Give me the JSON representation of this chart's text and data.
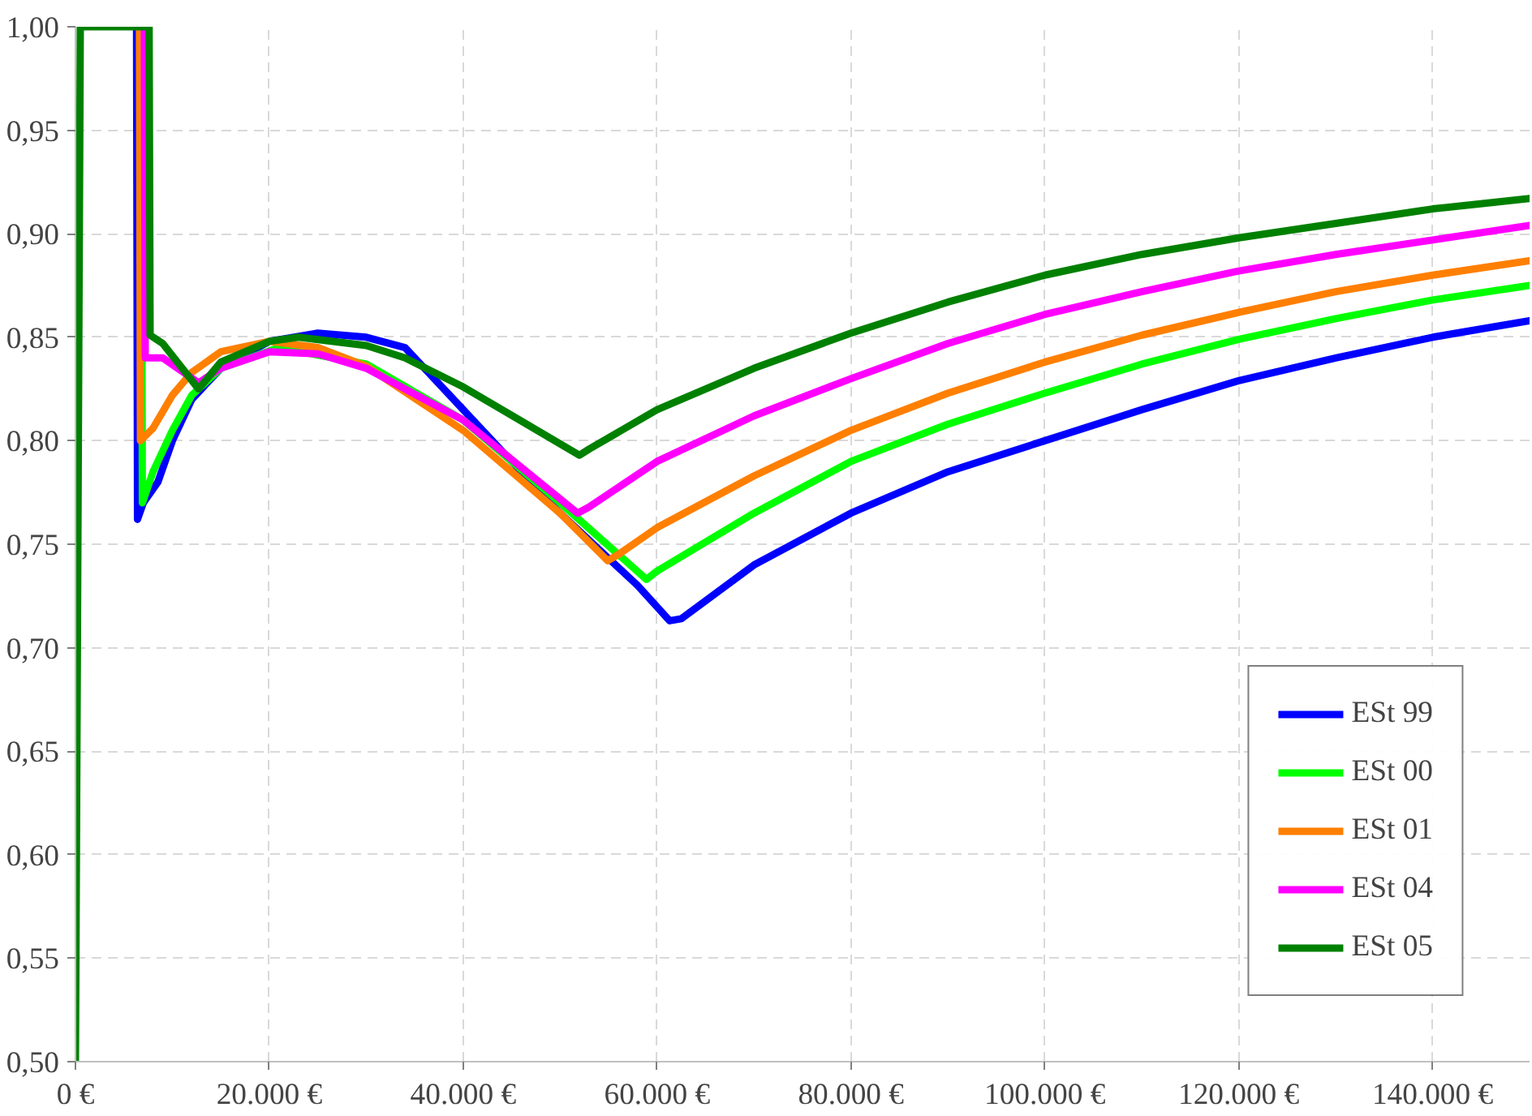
{
  "chart_data": {
    "type": "line",
    "xlim": [
      0,
      150000
    ],
    "ylim": [
      0.5,
      1.0
    ],
    "xticks": [
      {
        "value": 0,
        "label": "0 €"
      },
      {
        "value": 20000,
        "label": "20.000 €"
      },
      {
        "value": 40000,
        "label": "40.000 €"
      },
      {
        "value": 60000,
        "label": "60.000 €"
      },
      {
        "value": 80000,
        "label": "80.000 €"
      },
      {
        "value": 100000,
        "label": "100.000 €"
      },
      {
        "value": 120000,
        "label": "120.000 €"
      },
      {
        "value": 140000,
        "label": "140.000 €"
      }
    ],
    "yticks": [
      {
        "value": 0.5,
        "label": "0,50"
      },
      {
        "value": 0.55,
        "label": "0,55"
      },
      {
        "value": 0.6,
        "label": "0,60"
      },
      {
        "value": 0.65,
        "label": "0,65"
      },
      {
        "value": 0.7,
        "label": "0,70"
      },
      {
        "value": 0.75,
        "label": "0,75"
      },
      {
        "value": 0.8,
        "label": "0,80"
      },
      {
        "value": 0.85,
        "label": "0,85"
      },
      {
        "value": 0.9,
        "label": "0,90"
      },
      {
        "value": 0.95,
        "label": "0,95"
      },
      {
        "value": 1.0,
        "label": "1,00"
      }
    ],
    "grid": true,
    "legend": "bottom right",
    "marker": "none",
    "line_style": "solid",
    "series": [
      {
        "name": "ESt 99",
        "color": "#0000ff",
        "x": [
          6300,
          6400,
          7000,
          8500,
          10000,
          12000,
          15000,
          20000,
          25000,
          30000,
          34000,
          40000,
          50000,
          58000,
          61300,
          62500,
          70000,
          80000,
          90000,
          100000,
          110000,
          120000,
          130000,
          140000,
          150000
        ],
        "values": [
          1.0,
          0.762,
          0.77,
          0.78,
          0.8,
          0.82,
          0.835,
          0.848,
          0.852,
          0.85,
          0.845,
          0.815,
          0.765,
          0.73,
          0.713,
          0.714,
          0.74,
          0.765,
          0.785,
          0.8,
          0.815,
          0.829,
          0.84,
          0.85,
          0.858
        ]
      },
      {
        "name": "ESt 00",
        "color": "#00ff00",
        "x": [
          6800,
          6900,
          8000,
          10000,
          12000,
          15000,
          21000,
          30000,
          40000,
          50000,
          58900,
          60000,
          70000,
          80000,
          90000,
          100000,
          110000,
          120000,
          130000,
          140000,
          150000
        ],
        "values": [
          1.0,
          0.77,
          0.785,
          0.805,
          0.822,
          0.835,
          0.845,
          0.837,
          0.81,
          0.77,
          0.733,
          0.737,
          0.765,
          0.79,
          0.808,
          0.823,
          0.837,
          0.849,
          0.859,
          0.868,
          0.875
        ]
      },
      {
        "name": "ESt 01",
        "color": "#ff7f00",
        "x": [
          6600,
          6700,
          8000,
          10000,
          12000,
          15000,
          20000,
          25000,
          30000,
          40000,
          50000,
          54900,
          56000,
          60000,
          70000,
          80000,
          90000,
          100000,
          110000,
          120000,
          130000,
          140000,
          150000
        ],
        "values": [
          1.0,
          0.8,
          0.806,
          0.822,
          0.833,
          0.843,
          0.848,
          0.845,
          0.836,
          0.805,
          0.765,
          0.742,
          0.745,
          0.758,
          0.783,
          0.805,
          0.823,
          0.838,
          0.851,
          0.862,
          0.872,
          0.88,
          0.887
        ]
      },
      {
        "name": "ESt 04",
        "color": "#ff00ff",
        "x": [
          7100,
          7200,
          9000,
          12700,
          15000,
          20000,
          25000,
          30000,
          40000,
          51800,
          53000,
          60000,
          70000,
          80000,
          90000,
          100000,
          110000,
          120000,
          130000,
          140000,
          150000
        ],
        "values": [
          1.0,
          0.84,
          0.84,
          0.828,
          0.835,
          0.843,
          0.842,
          0.835,
          0.81,
          0.765,
          0.768,
          0.79,
          0.812,
          0.83,
          0.847,
          0.861,
          0.872,
          0.882,
          0.89,
          0.897,
          0.904
        ]
      },
      {
        "name": "ESt 05",
        "color": "#008000",
        "x": [
          0,
          500,
          7600,
          7700,
          9000,
          12700,
          15000,
          20000,
          23000,
          30000,
          34000,
          40000,
          52000,
          53000,
          60000,
          70000,
          80000,
          90000,
          100000,
          110000,
          120000,
          130000,
          140000,
          150000
        ],
        "values": [
          0.5,
          1.0,
          1.0,
          0.851,
          0.847,
          0.825,
          0.838,
          0.848,
          0.85,
          0.846,
          0.84,
          0.826,
          0.793,
          0.796,
          0.815,
          0.835,
          0.852,
          0.867,
          0.88,
          0.89,
          0.898,
          0.905,
          0.912,
          0.917
        ]
      }
    ]
  }
}
